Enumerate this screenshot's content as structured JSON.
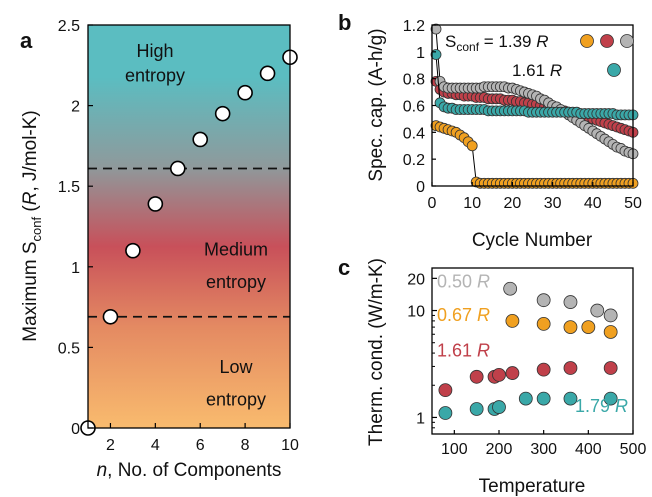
{
  "colors": {
    "gradient_top": "#5bbdc1",
    "gradient_mid": "#c8505a",
    "gradient_bottom": "#f9bb6e",
    "orange": "#f0a020",
    "red": "#c0404a",
    "gray": "#b4b4b4",
    "teal": "#3aa8a8"
  },
  "chart_data": [
    {
      "panel": "a",
      "type": "scatter",
      "xlabel_prefix": "n",
      "xlabel_rest": ", No. of Components",
      "ylabel_main": "Maximum S",
      "ylabel_sub": "conf",
      "ylabel_paren": " (",
      "ylabel_r": "R",
      "ylabel_units": ", J/mol-K)",
      "xlim": [
        1,
        10
      ],
      "ylim": [
        0,
        2.5
      ],
      "xticks": [
        2,
        4,
        6,
        8,
        10
      ],
      "yticks": [
        0,
        0.5,
        1,
        1.5,
        2,
        2.5
      ],
      "ytick_labels": [
        "0",
        "0.5",
        "1",
        "1.5",
        "2",
        "2.5"
      ],
      "background": "vertical gradient teal (top) to red (middle) to orange (bottom)",
      "x": [
        1,
        2,
        3,
        4,
        5,
        6,
        7,
        8,
        9,
        10
      ],
      "y": [
        0,
        0.69,
        1.1,
        1.39,
        1.61,
        1.79,
        1.95,
        2.08,
        2.2,
        2.3
      ],
      "thresholds": [
        0.69,
        1.61
      ],
      "regions": [
        {
          "line1": "High",
          "line2": "entropy"
        },
        {
          "line1": "Medium",
          "line2": "entropy"
        },
        {
          "line1": "Low",
          "line2": "entropy"
        }
      ]
    },
    {
      "panel": "b",
      "type": "scatter",
      "xlabel": "Cycle Number",
      "ylabel": "Spec. cap. (A-h/g)",
      "xlim": [
        0,
        50
      ],
      "ylim": [
        0,
        1.2
      ],
      "xticks": [
        0,
        10,
        20,
        30,
        40,
        50
      ],
      "yticks": [
        0,
        0.2,
        0.4,
        0.6,
        0.8,
        1,
        1.2
      ],
      "ytick_labels": [
        "0",
        "0.2",
        "0.4",
        "0.6",
        "0.8",
        "1",
        "1.2"
      ],
      "legend": [
        {
          "text_pre": "S",
          "text_sub": "conf",
          "text_post": " = 1.39 ",
          "text_r": "R",
          "markers": [
            "orange",
            "red",
            "gray"
          ]
        },
        {
          "text_pre": "",
          "text_sub": "",
          "text_post": "1.61 ",
          "text_r": "R",
          "markers": [
            "teal"
          ]
        }
      ],
      "series": [
        {
          "color": "orange",
          "x": [
            1,
            2,
            3,
            4,
            5,
            6,
            7,
            8,
            9,
            10,
            11,
            12,
            13,
            14,
            15,
            16,
            17,
            18,
            19,
            20,
            21,
            22,
            23,
            24,
            25,
            26,
            27,
            28,
            29,
            30,
            31,
            32,
            33,
            34,
            35,
            36,
            37,
            38,
            39,
            40,
            41,
            42,
            43,
            44,
            45,
            46,
            47,
            48,
            49,
            50
          ],
          "y": [
            0.45,
            0.44,
            0.43,
            0.42,
            0.41,
            0.4,
            0.38,
            0.36,
            0.33,
            0.3,
            0.03,
            0.02,
            0.02,
            0.02,
            0.02,
            0.02,
            0.02,
            0.02,
            0.02,
            0.02,
            0.02,
            0.02,
            0.02,
            0.02,
            0.02,
            0.02,
            0.02,
            0.02,
            0.02,
            0.02,
            0.02,
            0.02,
            0.02,
            0.02,
            0.02,
            0.02,
            0.02,
            0.02,
            0.02,
            0.02,
            0.02,
            0.02,
            0.02,
            0.02,
            0.02,
            0.02,
            0.02,
            0.02,
            0.02,
            0.02
          ]
        },
        {
          "color": "red",
          "x": [
            1,
            2,
            3,
            4,
            5,
            6,
            7,
            8,
            9,
            10,
            11,
            12,
            13,
            14,
            15,
            16,
            17,
            18,
            19,
            20,
            21,
            22,
            23,
            24,
            25,
            26,
            27,
            28,
            29,
            30,
            31,
            32,
            33,
            34,
            35,
            36,
            37,
            38,
            39,
            40,
            41,
            42,
            43,
            44,
            45,
            46,
            47,
            48,
            49,
            50
          ],
          "y": [
            0.78,
            0.72,
            0.7,
            0.69,
            0.69,
            0.68,
            0.68,
            0.67,
            0.67,
            0.67,
            0.66,
            0.66,
            0.66,
            0.65,
            0.65,
            0.65,
            0.65,
            0.64,
            0.64,
            0.64,
            0.63,
            0.63,
            0.62,
            0.62,
            0.61,
            0.61,
            0.6,
            0.59,
            0.59,
            0.58,
            0.57,
            0.56,
            0.56,
            0.55,
            0.54,
            0.53,
            0.53,
            0.52,
            0.51,
            0.5,
            0.49,
            0.48,
            0.47,
            0.46,
            0.45,
            0.44,
            0.43,
            0.42,
            0.41,
            0.4
          ]
        },
        {
          "color": "gray",
          "x": [
            1,
            2,
            3,
            4,
            5,
            6,
            7,
            8,
            9,
            10,
            11,
            12,
            13,
            14,
            15,
            16,
            17,
            18,
            19,
            20,
            21,
            22,
            23,
            24,
            25,
            26,
            27,
            28,
            29,
            30,
            31,
            32,
            33,
            34,
            35,
            36,
            37,
            38,
            39,
            40,
            41,
            42,
            43,
            44,
            45,
            46,
            47,
            48,
            49,
            50
          ],
          "y": [
            1.17,
            0.78,
            0.74,
            0.73,
            0.73,
            0.73,
            0.73,
            0.73,
            0.73,
            0.73,
            0.73,
            0.73,
            0.74,
            0.74,
            0.74,
            0.74,
            0.74,
            0.74,
            0.73,
            0.73,
            0.72,
            0.71,
            0.7,
            0.69,
            0.68,
            0.67,
            0.65,
            0.64,
            0.62,
            0.6,
            0.59,
            0.57,
            0.55,
            0.53,
            0.51,
            0.49,
            0.47,
            0.45,
            0.43,
            0.41,
            0.39,
            0.37,
            0.35,
            0.33,
            0.31,
            0.29,
            0.28,
            0.26,
            0.25,
            0.24
          ]
        },
        {
          "color": "teal",
          "x": [
            1,
            2,
            3,
            4,
            5,
            6,
            7,
            8,
            9,
            10,
            11,
            12,
            13,
            14,
            15,
            16,
            17,
            18,
            19,
            20,
            21,
            22,
            23,
            24,
            25,
            26,
            27,
            28,
            29,
            30,
            31,
            32,
            33,
            34,
            35,
            36,
            37,
            38,
            39,
            40,
            41,
            42,
            43,
            44,
            45,
            46,
            47,
            48,
            49,
            50
          ],
          "y": [
            0.98,
            0.62,
            0.59,
            0.58,
            0.58,
            0.57,
            0.57,
            0.57,
            0.57,
            0.57,
            0.57,
            0.57,
            0.57,
            0.56,
            0.56,
            0.56,
            0.56,
            0.56,
            0.56,
            0.56,
            0.56,
            0.56,
            0.56,
            0.55,
            0.55,
            0.55,
            0.55,
            0.55,
            0.55,
            0.55,
            0.55,
            0.55,
            0.55,
            0.55,
            0.55,
            0.55,
            0.54,
            0.54,
            0.54,
            0.54,
            0.54,
            0.54,
            0.54,
            0.54,
            0.54,
            0.53,
            0.53,
            0.53,
            0.53,
            0.53
          ]
        }
      ]
    },
    {
      "panel": "c",
      "type": "scatter",
      "xlabel": "Temperature",
      "ylabel": "Therm. cond. (W/m-K)",
      "xscale": "linear",
      "yscale": "log",
      "xlim": [
        50,
        500
      ],
      "ylim": [
        0.7,
        25
      ],
      "xticks": [
        100,
        200,
        300,
        400,
        500
      ],
      "yticks": [
        1,
        10,
        20
      ],
      "series": [
        {
          "label_num": "0.50 ",
          "label_r": "R",
          "color": "gray",
          "x": [
            225,
            300,
            360,
            420,
            450
          ],
          "y": [
            16,
            12.5,
            12,
            10,
            9
          ]
        },
        {
          "label_num": "0.67 ",
          "label_r": "R",
          "color": "orange",
          "x": [
            230,
            300,
            360,
            400,
            450
          ],
          "y": [
            8,
            7.5,
            7,
            7,
            6.3
          ]
        },
        {
          "label_num": "1.61 ",
          "label_r": "R",
          "color": "red",
          "x": [
            80,
            150,
            190,
            200,
            230,
            300,
            360,
            450
          ],
          "y": [
            1.8,
            2.4,
            2.4,
            2.5,
            2.6,
            2.8,
            2.9,
            2.9
          ]
        },
        {
          "label_num": "1.79 ",
          "label_r": "R",
          "color": "teal",
          "x": [
            80,
            150,
            190,
            200,
            260,
            300,
            360,
            450
          ],
          "y": [
            1.1,
            1.2,
            1.2,
            1.25,
            1.5,
            1.5,
            1.5,
            1.5
          ]
        }
      ]
    }
  ]
}
